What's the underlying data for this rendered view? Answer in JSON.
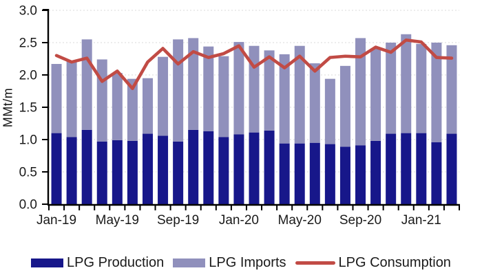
{
  "chart_data": {
    "type": "bar",
    "subtype": "stacked-bars-with-line",
    "title": "",
    "ylabel": "MMt/m",
    "xlabel": "",
    "ylim": [
      0,
      3.0
    ],
    "ytick_step": 0.5,
    "grid": true,
    "legend_position": "bottom",
    "categories": [
      "Jan-19",
      "Feb-19",
      "Mar-19",
      "Apr-19",
      "May-19",
      "Jun-19",
      "Jul-19",
      "Aug-19",
      "Sep-19",
      "Oct-19",
      "Nov-19",
      "Dec-19",
      "Jan-20",
      "Feb-20",
      "Mar-20",
      "Apr-20",
      "May-20",
      "Jun-20",
      "Jul-20",
      "Aug-20",
      "Sep-20",
      "Oct-20",
      "Nov-20",
      "Dec-20",
      "Jan-21",
      "Feb-21",
      "Mar-21"
    ],
    "x_tick_labels": [
      "Jan-19",
      "May-19",
      "Sep-19",
      "Jan-20",
      "May-20",
      "Sep-20",
      "Jan-21"
    ],
    "x_tick_label_indices": [
      0,
      4,
      8,
      12,
      16,
      20,
      24
    ],
    "y_tick_labels": [
      "0.0",
      "0.5",
      "1.0",
      "1.5",
      "2.0",
      "2.5",
      "3.0"
    ],
    "series": [
      {
        "name": "LPG Production",
        "type": "bar",
        "stacked": true,
        "color": "#17178A",
        "values": [
          1.1,
          1.04,
          1.15,
          0.97,
          0.99,
          0.98,
          1.09,
          1.06,
          0.97,
          1.15,
          1.13,
          1.04,
          1.08,
          1.11,
          1.14,
          0.94,
          0.94,
          0.95,
          0.93,
          0.89,
          0.91,
          0.98,
          1.09,
          1.1,
          1.1,
          0.96,
          1.09
        ]
      },
      {
        "name": "LPG Imports",
        "type": "bar",
        "stacked": true,
        "color": "#9090BC",
        "values": [
          1.07,
          1.18,
          1.4,
          1.27,
          1.04,
          0.96,
          0.86,
          1.22,
          1.58,
          1.42,
          1.31,
          1.25,
          1.43,
          1.34,
          1.24,
          1.38,
          1.51,
          1.23,
          1.01,
          1.25,
          1.66,
          1.43,
          1.41,
          1.53,
          1.38,
          1.54,
          1.37
        ]
      },
      {
        "name": "LPG Consumption",
        "type": "line",
        "color": "#C14B45",
        "values": [
          2.3,
          2.2,
          2.26,
          1.9,
          2.06,
          1.79,
          2.2,
          2.41,
          2.17,
          2.36,
          2.27,
          2.33,
          2.45,
          2.12,
          2.28,
          2.11,
          2.29,
          2.06,
          2.27,
          2.29,
          2.28,
          2.43,
          2.35,
          2.54,
          2.51,
          2.27,
          2.26
        ]
      }
    ],
    "colors": {
      "grid": "#D9D9D9",
      "axis": "#000000",
      "text": "#1A1A1A"
    }
  }
}
